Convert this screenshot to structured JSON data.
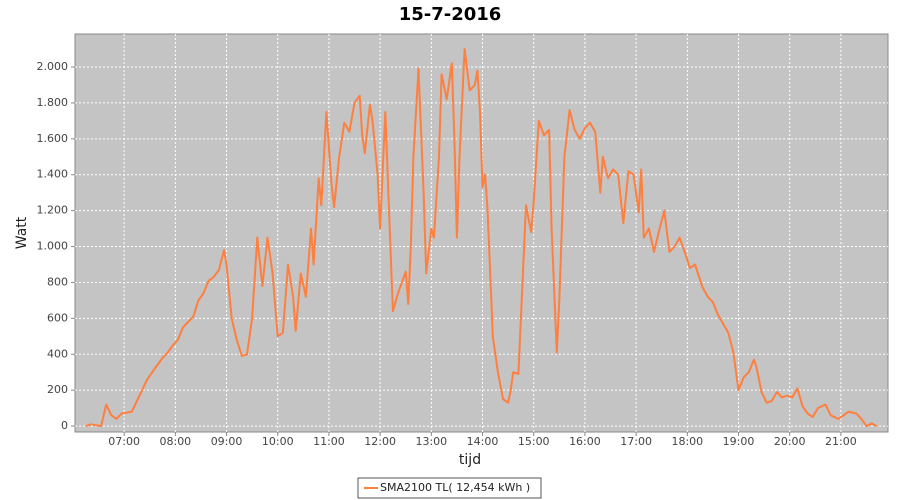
{
  "chart_data": {
    "type": "line",
    "title": "15-7-2016",
    "x_label": "tijd",
    "y_label": "Watt",
    "x": [
      6.25,
      6.35,
      6.45,
      6.55,
      6.65,
      6.75,
      6.85,
      6.95,
      7.05,
      7.15,
      7.25,
      7.35,
      7.45,
      7.55,
      7.65,
      7.75,
      7.85,
      7.95,
      8.05,
      8.15,
      8.25,
      8.35,
      8.45,
      8.55,
      8.65,
      8.75,
      8.85,
      8.95,
      9.0,
      9.1,
      9.2,
      9.3,
      9.4,
      9.5,
      9.6,
      9.7,
      9.8,
      9.9,
      10.0,
      10.1,
      10.2,
      10.3,
      10.35,
      10.45,
      10.55,
      10.65,
      10.7,
      10.8,
      10.85,
      10.95,
      11.05,
      11.1,
      11.2,
      11.3,
      11.4,
      11.5,
      11.6,
      11.65,
      11.7,
      11.8,
      11.85,
      11.95,
      12.0,
      12.1,
      12.2,
      12.25,
      12.35,
      12.45,
      12.5,
      12.55,
      12.6,
      12.65,
      12.75,
      12.85,
      12.9,
      13.0,
      13.05,
      13.15,
      13.2,
      13.3,
      13.4,
      13.45,
      13.5,
      13.55,
      13.65,
      13.75,
      13.85,
      13.9,
      13.95,
      14.0,
      14.05,
      14.1,
      14.2,
      14.3,
      14.4,
      14.5,
      14.55,
      14.6,
      14.7,
      14.75,
      14.85,
      14.95,
      15.0,
      15.1,
      15.2,
      15.3,
      15.35,
      15.45,
      15.5,
      15.6,
      15.7,
      15.8,
      15.9,
      16.0,
      16.1,
      16.2,
      16.3,
      16.35,
      16.45,
      16.55,
      16.65,
      16.75,
      16.85,
      16.95,
      17.05,
      17.1,
      17.15,
      17.25,
      17.35,
      17.45,
      17.55,
      17.65,
      17.75,
      17.85,
      17.95,
      18.05,
      18.15,
      18.3,
      18.4,
      18.5,
      18.6,
      18.7,
      18.8,
      18.9,
      19.0,
      19.1,
      19.2,
      19.3,
      19.35,
      19.45,
      19.55,
      19.65,
      19.75,
      19.85,
      19.95,
      20.05,
      20.15,
      20.25,
      20.35,
      20.45,
      20.55,
      20.7,
      20.8,
      20.95,
      21.05,
      21.15,
      21.3,
      21.4,
      21.5,
      21.6,
      21.7
    ],
    "series": [
      {
        "name": "SMA2100 TL( 12,454 kWh )",
        "color": "#ff7f3f",
        "values": [
          0,
          10,
          5,
          0,
          120,
          60,
          40,
          70,
          75,
          80,
          140,
          200,
          260,
          300,
          340,
          380,
          410,
          450,
          480,
          550,
          580,
          610,
          700,
          740,
          810,
          830,
          870,
          980,
          900,
          600,
          480,
          390,
          400,
          600,
          1050,
          780,
          1050,
          850,
          500,
          520,
          900,
          720,
          530,
          850,
          720,
          1100,
          900,
          1380,
          1230,
          1750,
          1350,
          1220,
          1500,
          1690,
          1640,
          1800,
          1840,
          1620,
          1520,
          1790,
          1700,
          1400,
          1100,
          1750,
          1000,
          640,
          740,
          820,
          860,
          680,
          1000,
          1500,
          1990,
          1300,
          850,
          1100,
          1050,
          1500,
          1960,
          1820,
          2020,
          1600,
          1050,
          1500,
          2100,
          1870,
          1900,
          1980,
          1750,
          1330,
          1400,
          1200,
          500,
          300,
          150,
          130,
          200,
          300,
          290,
          600,
          1230,
          1080,
          1250,
          1700,
          1620,
          1650,
          1100,
          410,
          700,
          1500,
          1760,
          1650,
          1600,
          1660,
          1690,
          1640,
          1300,
          1500,
          1380,
          1430,
          1400,
          1130,
          1420,
          1400,
          1190,
          1430,
          1050,
          1100,
          970,
          1090,
          1200,
          970,
          1000,
          1050,
          970,
          880,
          900,
          770,
          720,
          690,
          620,
          570,
          520,
          410,
          200,
          270,
          300,
          370,
          330,
          190,
          130,
          140,
          190,
          160,
          170,
          160,
          210,
          110,
          70,
          50,
          100,
          120,
          60,
          40,
          60,
          80,
          70,
          40,
          0,
          15,
          0
        ]
      }
    ],
    "xlim": [
      6.04,
      21.92
    ],
    "xticks": [
      {
        "value": 7,
        "label": "07:00"
      },
      {
        "value": 8,
        "label": "08:00"
      },
      {
        "value": 9,
        "label": "09:00"
      },
      {
        "value": 10,
        "label": "10:00"
      },
      {
        "value": 11,
        "label": "11:00"
      },
      {
        "value": 12,
        "label": "12:00"
      },
      {
        "value": 13,
        "label": "13:00"
      },
      {
        "value": 14,
        "label": "14:00"
      },
      {
        "value": 15,
        "label": "15:00"
      },
      {
        "value": 16,
        "label": "16:00"
      },
      {
        "value": 17,
        "label": "17:00"
      },
      {
        "value": 18,
        "label": "18:00"
      },
      {
        "value": 19,
        "label": "19:00"
      },
      {
        "value": 20,
        "label": "20:00"
      },
      {
        "value": 21,
        "label": "21:00"
      }
    ],
    "ylim": [
      -33,
      2184
    ],
    "yticks": [
      0,
      200,
      400,
      600,
      800,
      {
        "value": 1000,
        "label": "1.000"
      },
      {
        "value": 1200,
        "label": "1.200"
      },
      {
        "value": 1400,
        "label": "1.400"
      },
      {
        "value": 1600,
        "label": "1.600"
      },
      {
        "value": 1800,
        "label": "1.800"
      },
      {
        "value": 2000,
        "label": "2.000"
      }
    ],
    "grid": true
  }
}
